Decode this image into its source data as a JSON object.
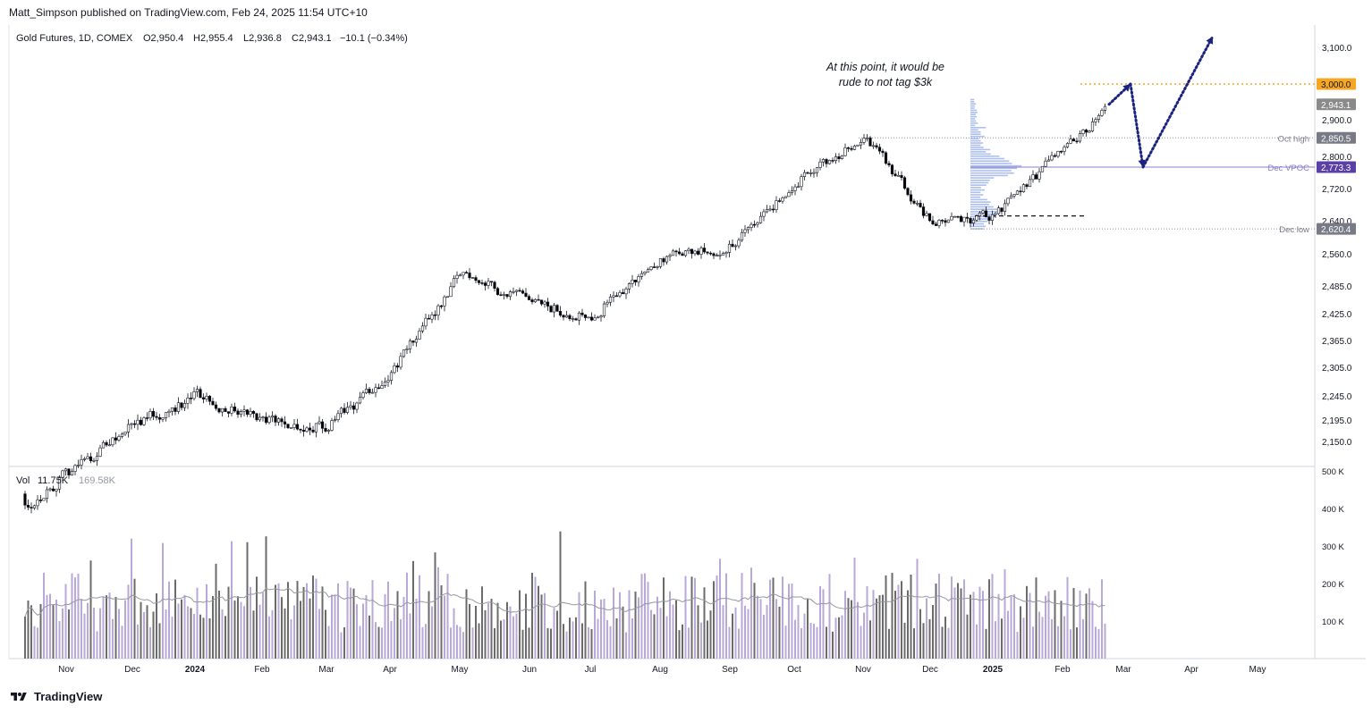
{
  "publisher": "Matt_Simpson published on TradingView.com, Feb 24, 2025 11:54 UTC+10",
  "brand": "TradingView",
  "colors": {
    "candle_up_fill": "#ffffff",
    "candle_down_fill": "#000000",
    "candle_border": "#131722",
    "vol_up": "#b8a9d9",
    "vol_down": "#6b6b6b",
    "vpoc": "#5b3fa8",
    "target": "#f5a623",
    "arrow": "#1a237e",
    "vp": "#9db4ec",
    "last_price_bg": "#8a8a8a",
    "level_bg": "#787b86"
  },
  "legend": {
    "symbol": "Gold Futures, 1D, COMEX",
    "open": "O2,950.4",
    "high": "H2,955.4",
    "low": "L2,936.8",
    "close": "C2,943.1",
    "change": "−10.1 (−0.34%)"
  },
  "annotation": {
    "line1": "At this point, it would be",
    "line2": "rude to not tag $3k"
  },
  "chart_data": [
    {
      "type": "candlestick",
      "title": "Gold Futures, 1D, COMEX",
      "x_ticks": [
        "Nov",
        "Dec",
        "2024",
        "Feb",
        "Mar",
        "Apr",
        "May",
        "Jun",
        "Jul",
        "Aug",
        "Sep",
        "Oct",
        "Nov",
        "Dec",
        "2025",
        "Feb",
        "Mar",
        "Apr",
        "May"
      ],
      "y_ticks": [
        3100,
        3000,
        2900,
        2800,
        2720,
        2640,
        2560,
        2485,
        2425,
        2365,
        2305,
        2245,
        2195,
        2150
      ],
      "y_tick_labels": [
        "3,100.0",
        "3,000.0",
        "2,900.0",
        "2,800.0",
        "2,720.0",
        "2,640.0",
        "2,560.0",
        "2,485.0",
        "2,425.0",
        "2,365.0",
        "2,305.0",
        "2,245.0",
        "2,195.0",
        "2,150.0"
      ],
      "y_axis_labels": [
        {
          "value": 3100,
          "label": "3,100.0"
        },
        {
          "value": 2900,
          "label": "2,900.0"
        },
        {
          "value": 2800,
          "label": "2,800.0"
        },
        {
          "value": 2720,
          "label": "2,720.0"
        },
        {
          "value": 2640,
          "label": "2,640.0"
        },
        {
          "value": 2560,
          "label": "2,560.0"
        },
        {
          "value": 2485,
          "label": "2,485.0"
        },
        {
          "value": 2425,
          "label": "2,425.0"
        },
        {
          "value": 2365,
          "label": "2,365.0"
        },
        {
          "value": 2305,
          "label": "2,305.0"
        },
        {
          "value": 2245,
          "label": "2,245.0"
        },
        {
          "value": 2195,
          "label": "2,195.0"
        },
        {
          "value": 2150,
          "label": "2,150.0"
        }
      ],
      "price_tags": [
        {
          "label": "3,000.0",
          "value": 3000,
          "kind": "target"
        },
        {
          "label": "2,943.1",
          "value": 2943.1,
          "kind": "last"
        },
        {
          "label": "2,850.5",
          "value": 2850.5,
          "kind": "level",
          "name": "Oct high"
        },
        {
          "label": "2,773.3",
          "value": 2773.3,
          "kind": "vpoc",
          "name": "Dec VPOC"
        },
        {
          "label": "2,620.4",
          "value": 2620.4,
          "kind": "level",
          "name": "Dec low"
        }
      ],
      "monthly_path": [
        {
          "month": "Oct 2023",
          "close": 2085
        },
        {
          "month": "Nov 2023",
          "close": 2190
        },
        {
          "month": "Dec 2023",
          "close": 2245
        },
        {
          "month": "Jan 2024",
          "close": 2195
        },
        {
          "month": "Feb 2024",
          "close": 2180
        },
        {
          "month": "Mar 2024",
          "close": 2300
        },
        {
          "month": "Apr 2024",
          "close": 2520
        },
        {
          "month": "May 2024",
          "close": 2440
        },
        {
          "month": "Jun 2024",
          "close": 2425
        },
        {
          "month": "Jul 2024",
          "close": 2550
        },
        {
          "month": "Aug 2024",
          "close": 2580
        },
        {
          "month": "Sep 2024",
          "close": 2740
        },
        {
          "month": "Oct 2024",
          "close": 2850
        },
        {
          "month": "Nov 2024",
          "close": 2630
        },
        {
          "month": "Dec 2024",
          "close": 2650
        },
        {
          "month": "Jan 2025",
          "close": 2820
        },
        {
          "month": "Feb 2025",
          "close": 2943.1
        }
      ],
      "projection": [
        {
          "point": "current",
          "value": 2943.1
        },
        {
          "point": "tag",
          "value": 3000
        },
        {
          "point": "pullback",
          "value": 2773.3
        },
        {
          "point": "extension",
          "value": 3130
        }
      ]
    },
    {
      "type": "bar",
      "title": "Vol",
      "current_value": "11.75K",
      "ma_value": "169.58K",
      "y_ticks": [
        500000,
        400000,
        300000,
        200000,
        100000
      ],
      "y_tick_labels": [
        "500 K",
        "400 K",
        "300 K",
        "200 K",
        "100 K"
      ],
      "ylim": [
        0,
        500000
      ]
    }
  ]
}
